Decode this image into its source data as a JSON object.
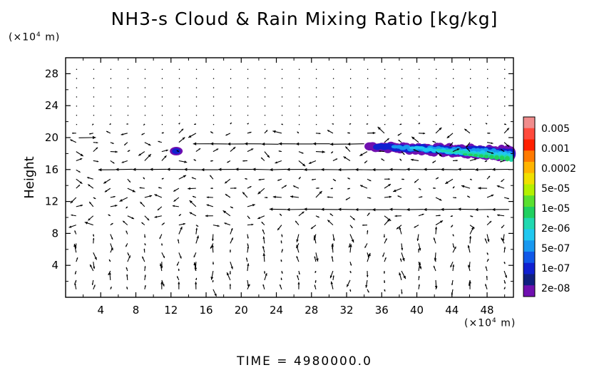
{
  "title": "NH3-s Cloud & Rain Mixing Ratio [kg/kg]",
  "y_unit": {
    "prefix": "(×10",
    "exp": "4",
    "suffix": " m)"
  },
  "x_unit": {
    "prefix": "(×10",
    "exp": "4",
    "suffix": " m)"
  },
  "time_label": "TIME = 4980000.0",
  "chart_data": {
    "type": "heatmap",
    "title": "NH3-s Cloud & Rain Mixing Ratio [kg/kg]",
    "xlabel": "",
    "ylabel": "Height",
    "x_ticks": [
      4,
      8,
      12,
      16,
      20,
      24,
      28,
      32,
      36,
      40,
      44,
      48
    ],
    "y_ticks": [
      4,
      8,
      12,
      16,
      20,
      24,
      28
    ],
    "xlim": [
      0,
      51
    ],
    "ylim": [
      0,
      30
    ],
    "grid": false,
    "colorbar": {
      "labels": [
        "0.005",
        "0.001",
        "0.0002",
        "5e-05",
        "1e-05",
        "2e-06",
        "5e-07",
        "1e-07",
        "2e-08"
      ],
      "colors_top_to_bottom": [
        "#f08c8c",
        "#ff4a3c",
        "#ff2000",
        "#ff7a00",
        "#ffb400",
        "#f0e000",
        "#b4f000",
        "#5ae030",
        "#20d060",
        "#20d8b0",
        "#20c8f0",
        "#1898f0",
        "#1058e8",
        "#1020d0",
        "#102080",
        "#7010b0"
      ]
    },
    "cloud_regions": [
      {
        "x_range": [
          12.0,
          13.2
        ],
        "y_range": [
          17.8,
          18.8
        ],
        "max_level": "1e-07"
      },
      {
        "x_range": [
          34.5,
          51
        ],
        "y_range": [
          16.0,
          19.6
        ],
        "max_level": "2e-05"
      }
    ],
    "vector_field": {
      "description": "wind vectors",
      "long_arrows": [
        {
          "y": 20.0,
          "x_from": 1.5,
          "x_to": 2.0
        },
        {
          "y": 19.2,
          "x_from": 34,
          "x_to": 14.5
        },
        {
          "y": 16.0,
          "x_from": 50.5,
          "x_to": 2.5
        },
        {
          "y": 11.0,
          "x_from": 50.5,
          "x_to": 21.5
        }
      ]
    }
  }
}
